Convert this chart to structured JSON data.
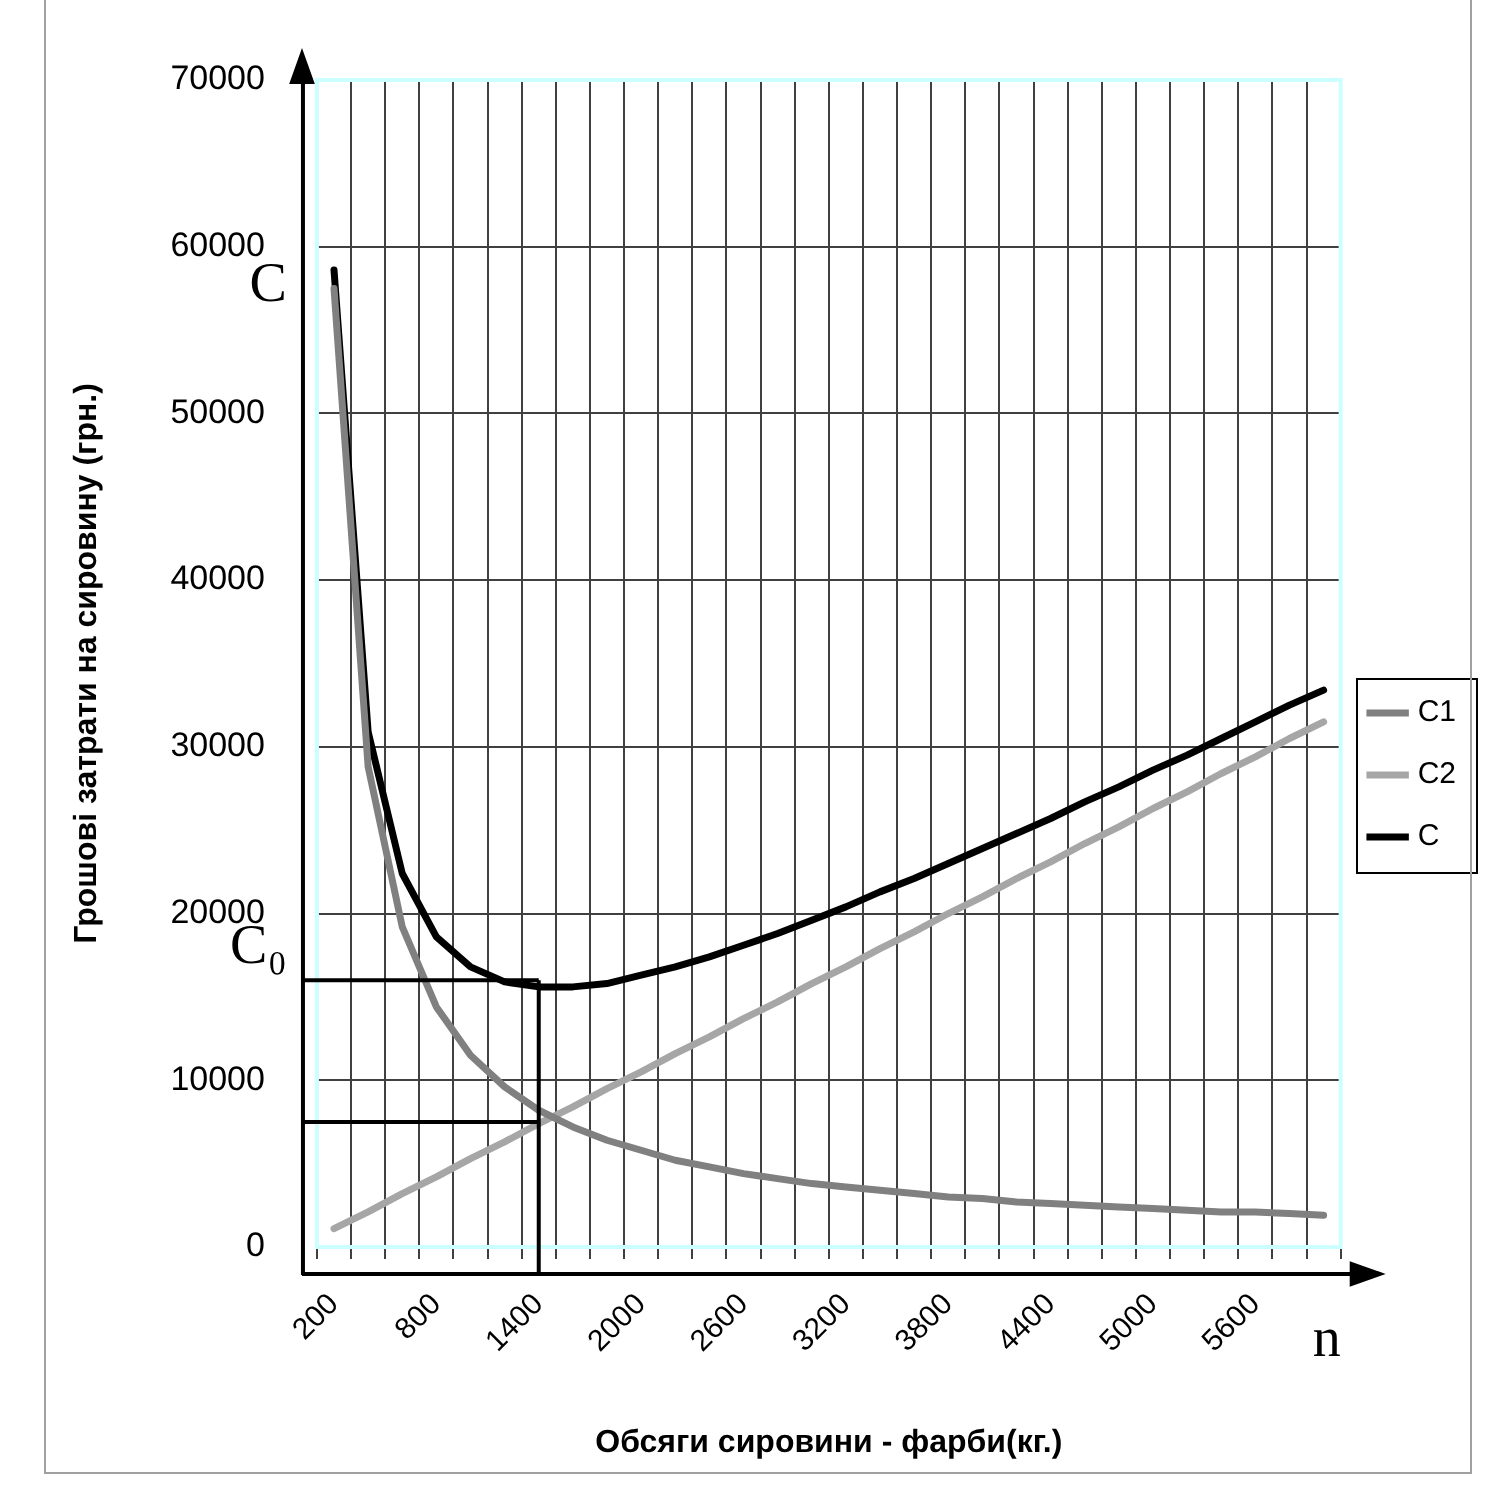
{
  "chart_data": {
    "type": "line",
    "xlabel": "Обсяги сировини - фарби(кг.)",
    "ylabel": "Грошові затрати на сировину (грн.)",
    "categories": [
      "200",
      null,
      null,
      "800",
      null,
      null,
      "1400",
      null,
      null,
      "2000",
      null,
      null,
      "2600",
      null,
      null,
      "3200",
      null,
      null,
      "3800",
      null,
      null,
      "4400",
      null,
      null,
      "5000",
      null,
      null,
      "5600",
      null,
      null
    ],
    "series": [
      {
        "name": "C1",
        "color": "#808080",
        "values": [
          57500,
          28800,
          19200,
          14400,
          11500,
          9600,
          8200,
          7200,
          6400,
          5800,
          5200,
          4800,
          4400,
          4100,
          3800,
          3600,
          3400,
          3200,
          3000,
          2900,
          2700,
          2600,
          2500,
          2400,
          2300,
          2200,
          2100,
          2100,
          2000,
          1900
        ]
      },
      {
        "name": "C2",
        "color": "#a6a6a6",
        "values": [
          1100,
          2100,
          3200,
          4200,
          5300,
          6300,
          7400,
          8400,
          9500,
          10500,
          11600,
          12600,
          13700,
          14700,
          15800,
          16800,
          17900,
          18900,
          20000,
          21000,
          22100,
          23100,
          24200,
          25200,
          26300,
          27300,
          28400,
          29400,
          30500,
          31500
        ]
      },
      {
        "name": "C",
        "color": "#000000",
        "values": [
          58600,
          30900,
          22400,
          18600,
          16800,
          15900,
          15600,
          15600,
          15800,
          16300,
          16800,
          17400,
          18100,
          18800,
          19600,
          20400,
          21300,
          22100,
          23000,
          23900,
          24800,
          25700,
          26700,
          27600,
          28600,
          29500,
          30500,
          31500,
          32500,
          33400
        ]
      }
    ],
    "ylim": [
      0,
      70000
    ],
    "yticks": [
      0,
      10000,
      20000,
      30000,
      40000,
      50000,
      60000,
      70000
    ],
    "grid": true,
    "legend": "right",
    "marker": "none",
    "line_style": "solid",
    "ref_lines": [
      {
        "axis": "y",
        "value": 16000,
        "color": "#000000"
      },
      {
        "axis": "y",
        "value": 7500,
        "color": "#000000"
      },
      {
        "axis": "x",
        "value": "1400",
        "color": "#000000"
      }
    ],
    "annotations": [
      "C",
      "C₀",
      "n"
    ]
  }
}
